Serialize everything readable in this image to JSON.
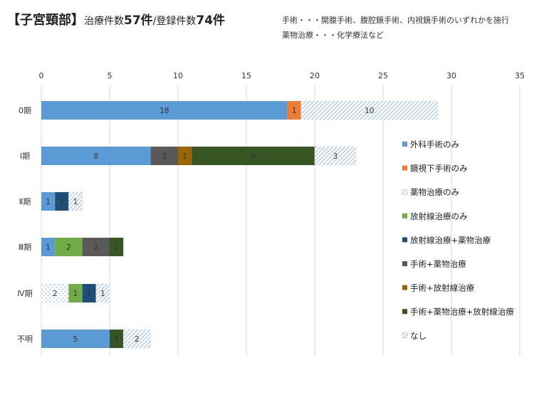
{
  "header": {
    "title_main": "【子宮頸部】",
    "title_pre1": "治療件数",
    "title_num1": "57件",
    "title_sep": "/",
    "title_pre2": "登録件数",
    "title_num2": "74件",
    "note_line1": "手術・・・開腹手術、腹腔鏡手術、内視鏡手術のいずれかを施行",
    "note_line2": "薬物治療・・・化学療法など"
  },
  "chart_data": {
    "type": "bar",
    "orientation": "horizontal",
    "stacked": true,
    "title": "",
    "xlabel": "",
    "ylabel": "",
    "xlim": [
      0,
      35
    ],
    "x_ticks": [
      0,
      5,
      10,
      15,
      20,
      25,
      30,
      35
    ],
    "grid": true,
    "legend_position": "right",
    "categories": [
      "0期",
      "Ⅰ期",
      "Ⅱ期",
      "Ⅲ期",
      "Ⅳ期",
      "不明"
    ],
    "series": [
      {
        "name": "外科手術のみ",
        "color": "#5B9BD5",
        "pattern": "solid",
        "values": [
          18,
          8,
          1,
          1,
          null,
          5
        ]
      },
      {
        "name": "鏡視下手術のみ",
        "color": "#ED7D31",
        "pattern": "solid",
        "values": [
          1,
          null,
          null,
          null,
          null,
          null
        ]
      },
      {
        "name": "薬物治療のみ",
        "color": "#9DC3E6",
        "pattern": "dots",
        "values": [
          null,
          null,
          null,
          null,
          2,
          null
        ]
      },
      {
        "name": "放射線治療のみ",
        "color": "#70AD47",
        "pattern": "solid",
        "values": [
          null,
          null,
          null,
          2,
          1,
          null
        ]
      },
      {
        "name": "放射線治療+薬物治療",
        "color": "#1F4E79",
        "pattern": "solid",
        "values": [
          null,
          null,
          1,
          null,
          1,
          null
        ]
      },
      {
        "name": "手術+薬物治療",
        "color": "#595959",
        "pattern": "solid",
        "values": [
          null,
          2,
          null,
          2,
          null,
          null
        ]
      },
      {
        "name": "手術+放射線治療",
        "color": "#9C6500",
        "pattern": "solid",
        "values": [
          null,
          1,
          null,
          null,
          null,
          null
        ]
      },
      {
        "name": "手術+薬物治療+放射線治療",
        "color": "#375623",
        "pattern": "solid",
        "values": [
          null,
          9,
          null,
          1,
          null,
          1
        ]
      },
      {
        "name": "なし",
        "color": "#9DC3E6",
        "pattern": "hatch",
        "values": [
          10,
          3,
          1,
          null,
          1,
          2
        ]
      }
    ]
  }
}
